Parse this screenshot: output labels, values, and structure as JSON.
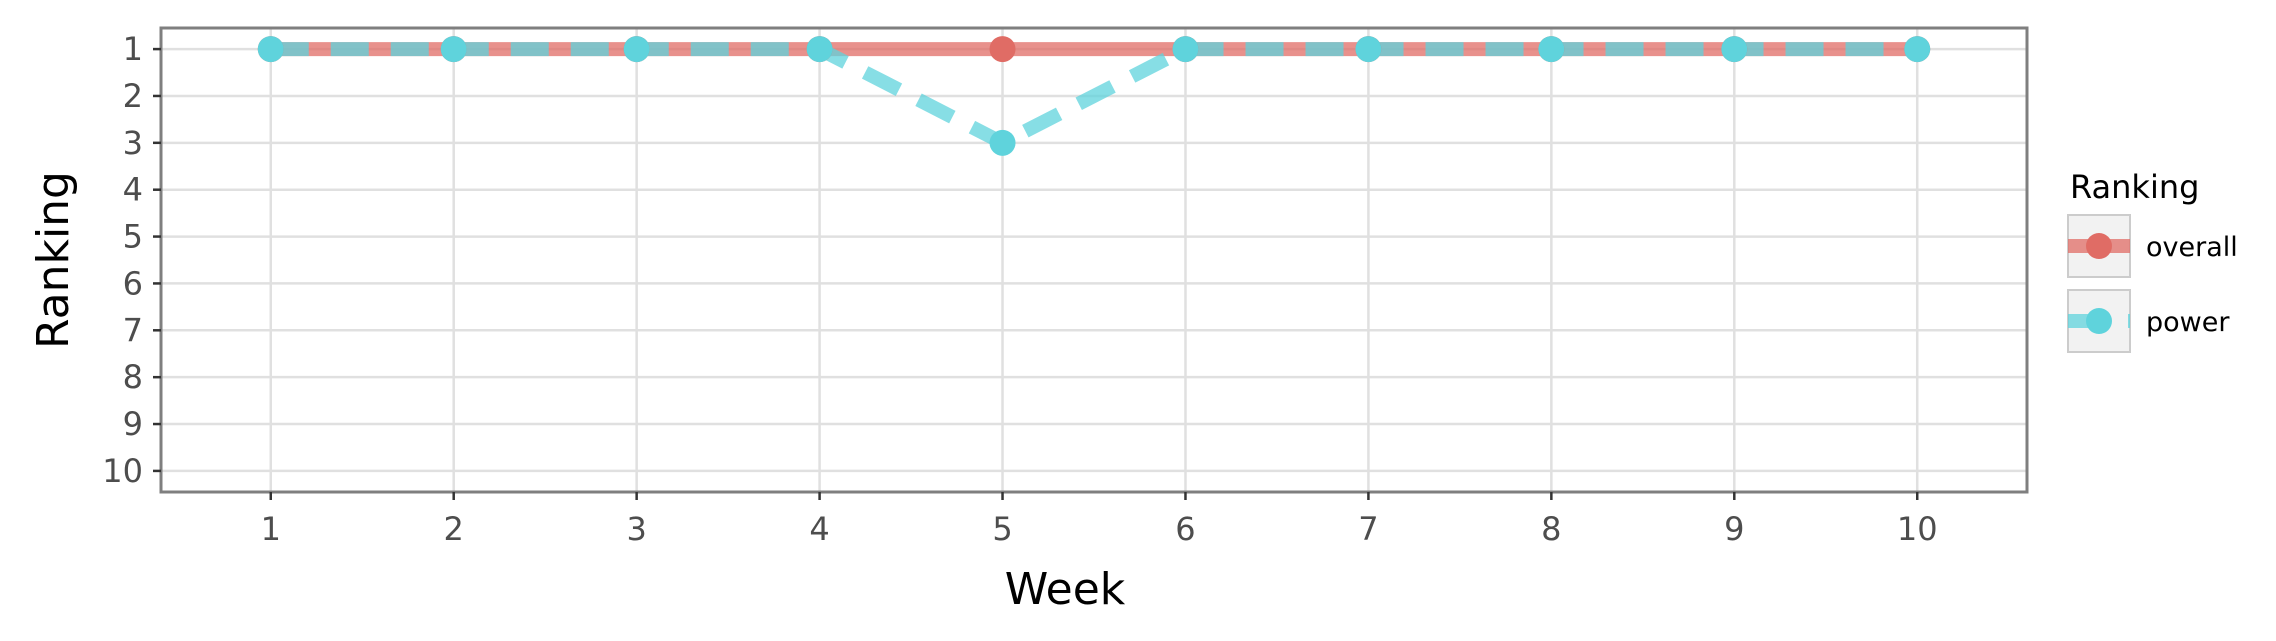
{
  "chart_data": {
    "type": "line",
    "xlabel": "Week",
    "ylabel": "Ranking",
    "x": [
      1,
      2,
      3,
      4,
      5,
      6,
      7,
      8,
      9,
      10
    ],
    "x_ticks": [
      "1",
      "2",
      "3",
      "4",
      "5",
      "6",
      "7",
      "8",
      "9",
      "10"
    ],
    "y_ticks": [
      "1",
      "2",
      "3",
      "4",
      "5",
      "6",
      "7",
      "8",
      "9",
      "10"
    ],
    "xlim": [
      0.4,
      10.6
    ],
    "ylim": [
      10.45,
      0.55
    ],
    "y_reversed": true,
    "grid": true,
    "legend": {
      "title": "Ranking",
      "placement": "right"
    },
    "series": [
      {
        "name": "overall",
        "color": "#e06c65",
        "line_style": "solid",
        "values": [
          1,
          1,
          1,
          1,
          1,
          1,
          1,
          1,
          1,
          1
        ]
      },
      {
        "name": "power",
        "color": "#5fd3dc",
        "line_style": "dashed",
        "values": [
          1,
          1,
          1,
          1,
          3,
          1,
          1,
          1,
          1,
          1
        ]
      }
    ]
  }
}
